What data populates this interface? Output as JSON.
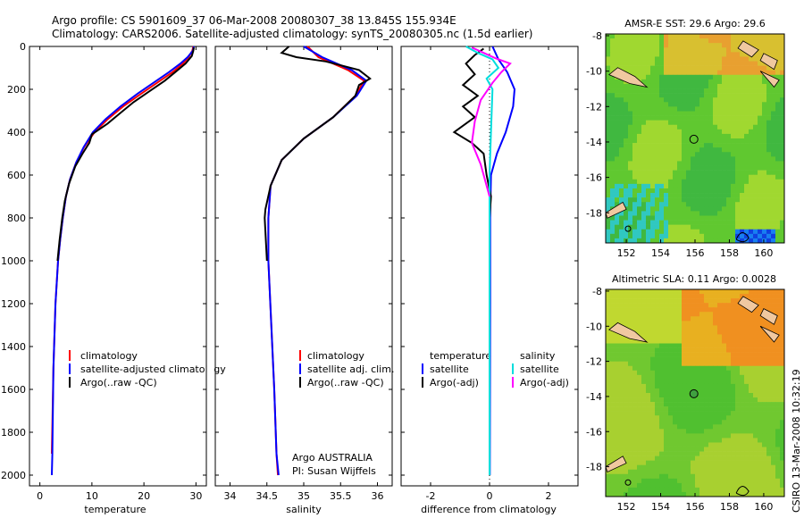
{
  "header": {
    "line1": "Argo profile: CS 5901609_37 06-Mar-2008 20080307_38 13.845S 155.934E",
    "line2": "Climatology: CARS2006. Satellite-adjusted climatology: synTS_20080305.nc (1.5d earlier)"
  },
  "side_stamp": "CSIRO 13-Mar-2008 10:32:19",
  "chart_data": [
    {
      "type": "line",
      "xlabel": "temperature",
      "xlim": [
        -2,
        32
      ],
      "xticks": [
        0,
        10,
        20,
        30
      ],
      "ylim": [
        0,
        2050
      ],
      "yticks": [
        0,
        200,
        400,
        600,
        800,
        1000,
        1200,
        1400,
        1600,
        1800,
        2000
      ],
      "legend": [
        "climatology",
        "satellite-adjusted climatology",
        "Argo(..raw -QC)"
      ],
      "series": [
        {
          "name": "climatology",
          "color": "#ff0000",
          "x": [
            29.5,
            29.3,
            28.6,
            27.5,
            25.5,
            22.5,
            19.5,
            16,
            13,
            10.5,
            8.5,
            7,
            5.8,
            5,
            4.4,
            3.9,
            3.5,
            3,
            2.6,
            2.3
          ],
          "y": [
            0,
            20,
            50,
            80,
            120,
            170,
            220,
            280,
            340,
            400,
            470,
            540,
            620,
            700,
            800,
            900,
            1000,
            1200,
            1500,
            1900
          ]
        },
        {
          "name": "satellite-adjusted climatology",
          "color": "#0000ff",
          "x": [
            29.6,
            29.4,
            28.4,
            27,
            24.8,
            21.8,
            18.8,
            15.5,
            12.6,
            10.2,
            8.4,
            7,
            5.8,
            5,
            4.4,
            3.9,
            3.5,
            3,
            2.6,
            2.4,
            2.3
          ],
          "y": [
            0,
            20,
            50,
            80,
            120,
            170,
            220,
            280,
            340,
            400,
            470,
            540,
            620,
            700,
            800,
            900,
            1000,
            1200,
            1500,
            1900,
            2000
          ]
        },
        {
          "name": "Argo(..raw -QC)",
          "color": "#000000",
          "x": [
            29.6,
            29.5,
            29.2,
            28,
            26,
            24,
            21,
            18,
            15.5,
            13,
            10,
            9.5,
            8.2,
            6.8,
            5.6,
            4.8,
            4.3,
            3.8,
            3.4
          ],
          "y": [
            5,
            20,
            45,
            80,
            120,
            160,
            210,
            260,
            310,
            360,
            410,
            450,
            500,
            560,
            640,
            720,
            800,
            900,
            1000
          ]
        }
      ]
    },
    {
      "type": "line",
      "xlabel": "salinity",
      "xlim": [
        33.8,
        36.2
      ],
      "xticks": [
        34,
        34.5,
        35,
        35.5,
        36
      ],
      "ylim": [
        0,
        2050
      ],
      "legend": [
        "climatology",
        "satellite adj. clim.",
        "Argo(..raw -QC)"
      ],
      "annotation_lines": [
        "Argo AUSTRALIA",
        "PI: Susan Wijffels"
      ],
      "series": [
        {
          "name": "climatology",
          "color": "#ff0000",
          "x": [
            35.05,
            35.2,
            35.6,
            35.82,
            35.7,
            35.4,
            35.0,
            34.7,
            34.55,
            34.52,
            34.52,
            34.56,
            34.6,
            34.63,
            34.65
          ],
          "y": [
            0,
            50,
            110,
            160,
            230,
            330,
            430,
            530,
            650,
            800,
            1000,
            1300,
            1600,
            1900,
            2000
          ]
        },
        {
          "name": "satellite adj. clim.",
          "color": "#0000ff",
          "x": [
            35.0,
            35.25,
            35.65,
            35.85,
            35.72,
            35.4,
            35.0,
            34.7,
            34.55,
            34.52,
            34.52,
            34.56,
            34.6,
            34.63,
            34.66
          ],
          "y": [
            0,
            50,
            110,
            160,
            230,
            330,
            430,
            530,
            650,
            800,
            1000,
            1300,
            1600,
            1900,
            2000
          ]
        },
        {
          "name": "Argo(..raw -QC)",
          "color": "#000000",
          "x": [
            34.8,
            34.7,
            34.9,
            35.3,
            35.75,
            35.9,
            35.75,
            35.7,
            35.4,
            35.0,
            34.7,
            34.55,
            34.48,
            34.47,
            34.5
          ],
          "y": [
            0,
            30,
            50,
            70,
            110,
            150,
            180,
            230,
            330,
            430,
            530,
            650,
            760,
            800,
            1000
          ]
        }
      ]
    },
    {
      "type": "line",
      "xlabel": "difference from climatology",
      "xlim": [
        -3,
        3
      ],
      "xticks": [
        -2,
        0,
        2
      ],
      "ylim": [
        0,
        2050
      ],
      "legend_groups": [
        {
          "title": "temperature",
          "entries": [
            "satellite",
            "Argo(-adj)"
          ]
        },
        {
          "title": "salinity",
          "entries": [
            "satellite",
            "Argo(-adj)"
          ]
        }
      ],
      "series": [
        {
          "name": "temperature satellite",
          "color": "#0000ff",
          "x": [
            0.1,
            0.3,
            0.6,
            0.85,
            0.8,
            0.55,
            0.25,
            0.05,
            0.02,
            0.02,
            0.01
          ],
          "y": [
            0,
            60,
            120,
            200,
            280,
            400,
            500,
            600,
            800,
            1200,
            2000
          ]
        },
        {
          "name": "temperature Argo(-adj)",
          "color": "#000000",
          "x": [
            -0.2,
            -0.5,
            -0.8,
            -0.5,
            -0.9,
            -0.4,
            -0.9,
            -0.5,
            -1.2,
            -0.6,
            -0.2,
            -0.1,
            0.05,
            0.0
          ],
          "y": [
            10,
            40,
            80,
            130,
            180,
            230,
            280,
            330,
            400,
            450,
            500,
            600,
            700,
            800
          ]
        },
        {
          "name": "salinity satellite",
          "color": "#00dddd",
          "x": [
            -0.8,
            -0.4,
            0.1,
            0.3,
            -0.1,
            0.1,
            0.05,
            0.0,
            0.0,
            0.0
          ],
          "y": [
            0,
            30,
            60,
            100,
            150,
            200,
            400,
            600,
            1000,
            2000
          ]
        },
        {
          "name": "salinity Argo(-adj)",
          "color": "#ff00ff",
          "x": [
            -0.6,
            -0.2,
            0.2,
            0.7,
            0.4,
            0.1,
            -0.3,
            -0.5,
            -0.6,
            -0.3,
            0.0
          ],
          "y": [
            5,
            30,
            55,
            80,
            120,
            170,
            250,
            350,
            450,
            550,
            700
          ]
        }
      ]
    },
    {
      "type": "heatmap",
      "title": "AMSR-E SST: 29.6  Argo: 29.6",
      "xticks": [
        152,
        154,
        156,
        158,
        160
      ],
      "yticks": [
        -8,
        -10,
        -12,
        -14,
        -16,
        -18
      ],
      "marker": {
        "lon": 155.934,
        "lat": -13.845
      }
    },
    {
      "type": "heatmap",
      "title": "Altimetric SLA: 0.11  Argo: 0.0028",
      "xticks": [
        152,
        154,
        156,
        158,
        160
      ],
      "yticks": [
        -8,
        -10,
        -12,
        -14,
        -16,
        -18
      ],
      "marker": {
        "lon": 155.934,
        "lat": -13.845
      }
    }
  ]
}
